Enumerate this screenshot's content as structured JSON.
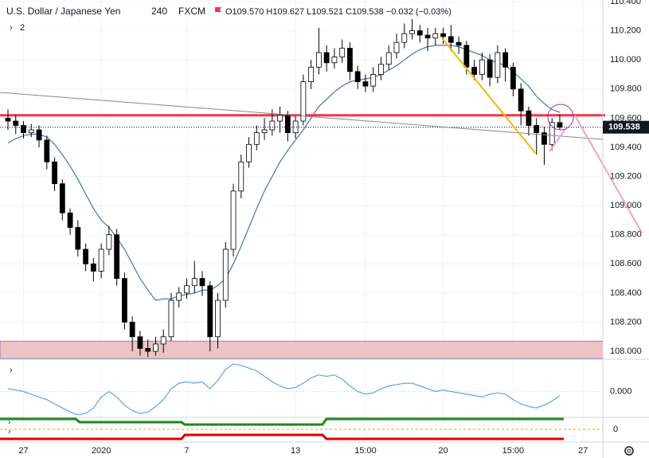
{
  "chart_data": {
    "type": "candlestick",
    "header": {
      "symbol": "U.S. Dollar / Japanese Yen",
      "interval": "240",
      "source": "FXCM",
      "ohlc": "O109.570 H109.627 L109.521 C109.538 −0.032 (−0.03%)",
      "indicators": "2"
    },
    "categories": [
      null,
      null,
      "27",
      null,
      null,
      null,
      null,
      null,
      null,
      null,
      null,
      null,
      "2020",
      null,
      null,
      null,
      null,
      null,
      null,
      null,
      null,
      null,
      null,
      "7",
      null,
      null,
      null,
      null,
      null,
      null,
      null,
      null,
      null,
      null,
      null,
      null,
      null,
      "13",
      null,
      null,
      null,
      null,
      null,
      null,
      null,
      null,
      "15:00",
      null,
      null,
      null,
      null,
      null,
      null,
      null,
      null,
      null,
      "20",
      null,
      null,
      null,
      null,
      null,
      null,
      null,
      null,
      "15:00",
      null,
      null,
      null,
      null,
      null,
      null,
      null,
      null,
      "27"
    ],
    "open": [
      109.6,
      109.58,
      109.55,
      109.5,
      109.52,
      109.45,
      109.3,
      109.15,
      108.95,
      108.85,
      108.7,
      108.6,
      108.55,
      108.7,
      108.8,
      108.5,
      108.2,
      108.1,
      108.02,
      108.0,
      108.05,
      108.1,
      108.35,
      108.4,
      108.45,
      108.5,
      108.45,
      108.1,
      108.35,
      108.7,
      109.1,
      109.3,
      109.42,
      109.5,
      109.52,
      109.58,
      109.62,
      109.5,
      109.58,
      109.85,
      109.95,
      110.05,
      109.98,
      110.02,
      110.08,
      109.92,
      109.85,
      109.82,
      109.9,
      109.97,
      110.05,
      110.12,
      110.18,
      110.2,
      110.17,
      110.15,
      110.18,
      110.16,
      110.12,
      110.1,
      109.95,
      109.9,
      110.0,
      109.88,
      110.05,
      109.95,
      109.8,
      109.65,
      109.55,
      109.5,
      109.42,
      109.57,
      null,
      null,
      null
    ],
    "high": [
      109.66,
      109.62,
      109.58,
      109.56,
      109.55,
      109.48,
      109.33,
      109.18,
      108.98,
      108.9,
      108.74,
      108.64,
      108.74,
      108.86,
      108.84,
      108.54,
      108.24,
      108.14,
      108.08,
      108.1,
      108.15,
      108.4,
      108.44,
      108.5,
      108.62,
      108.55,
      108.48,
      108.4,
      108.75,
      109.15,
      109.35,
      109.47,
      109.55,
      109.6,
      109.66,
      109.68,
      109.65,
      109.62,
      109.9,
      110.0,
      110.22,
      110.1,
      110.08,
      110.14,
      110.12,
      109.96,
      109.9,
      109.95,
      110.02,
      110.1,
      110.18,
      110.25,
      110.28,
      110.24,
      110.22,
      110.22,
      110.22,
      110.24,
      110.16,
      110.13,
      110.0,
      110.05,
      110.04,
      110.1,
      110.08,
      109.98,
      109.84,
      109.68,
      109.6,
      109.54,
      109.6,
      109.627,
      null,
      null,
      null
    ],
    "low": [
      109.52,
      109.49,
      109.46,
      109.47,
      109.4,
      109.25,
      109.1,
      108.9,
      108.8,
      108.65,
      108.55,
      108.48,
      108.5,
      108.66,
      108.45,
      108.15,
      108.0,
      107.97,
      107.96,
      107.97,
      107.99,
      108.07,
      108.3,
      108.36,
      108.4,
      108.38,
      108.0,
      108.02,
      108.3,
      108.65,
      109.05,
      109.26,
      109.38,
      109.45,
      109.48,
      109.5,
      109.44,
      109.46,
      109.55,
      109.8,
      109.9,
      109.92,
      109.94,
      109.98,
      109.86,
      109.8,
      109.78,
      109.78,
      109.86,
      109.93,
      110.01,
      110.08,
      110.14,
      110.12,
      110.06,
      110.1,
      110.11,
      110.06,
      110.04,
      109.9,
      109.86,
      109.86,
      109.82,
      109.84,
      109.85,
      109.75,
      109.55,
      109.48,
      109.35,
      109.28,
      109.38,
      109.521,
      null,
      null,
      null
    ],
    "close": [
      109.58,
      109.55,
      109.5,
      109.52,
      109.45,
      109.3,
      109.15,
      108.95,
      108.85,
      108.7,
      108.6,
      108.55,
      108.7,
      108.8,
      108.5,
      108.2,
      108.1,
      108.02,
      108.0,
      108.05,
      108.1,
      108.35,
      108.4,
      108.45,
      108.5,
      108.45,
      108.1,
      108.35,
      108.7,
      109.1,
      109.3,
      109.42,
      109.5,
      109.52,
      109.58,
      109.62,
      109.5,
      109.58,
      109.85,
      109.95,
      110.05,
      109.98,
      110.02,
      110.08,
      109.92,
      109.85,
      109.82,
      109.9,
      109.97,
      110.05,
      110.12,
      110.18,
      110.2,
      110.17,
      110.15,
      110.18,
      110.16,
      110.12,
      110.1,
      109.95,
      109.9,
      110.0,
      109.88,
      110.05,
      109.95,
      109.8,
      109.65,
      109.55,
      109.5,
      109.42,
      109.57,
      109.538,
      null,
      null,
      null
    ],
    "up_color": "#ffffff",
    "down_color": "#000000",
    "border_color": "#000000",
    "ma": {
      "color": "#4a6fb5",
      "values": [
        109.43,
        109.46,
        109.48,
        109.49,
        109.49,
        109.47,
        109.42,
        109.35,
        109.27,
        109.18,
        109.08,
        108.98,
        108.9,
        108.85,
        108.78,
        108.7,
        108.6,
        108.5,
        108.42,
        108.35,
        108.36,
        108.36,
        108.38,
        108.39,
        108.4,
        108.42,
        108.42,
        108.45,
        108.5,
        108.6,
        108.72,
        108.85,
        108.98,
        109.1,
        109.2,
        109.3,
        109.38,
        109.45,
        109.52,
        109.6,
        109.68,
        109.73,
        109.78,
        109.82,
        109.85,
        109.86,
        109.87,
        109.88,
        109.9,
        109.93,
        109.96,
        110.0,
        110.04,
        110.07,
        110.09,
        110.1,
        110.1,
        110.1,
        110.09,
        110.07,
        110.05,
        110.03,
        110.0,
        109.98,
        109.96,
        109.92,
        109.87,
        109.82,
        109.75,
        109.7,
        109.66,
        109.64,
        null,
        null,
        null
      ]
    },
    "hline": {
      "value": 109.62,
      "color": "#f23645"
    },
    "zone": {
      "from": 107.95,
      "to": 108.07,
      "color": "#e8b4b4"
    },
    "ylim": [
      107.951,
      110.411
    ],
    "yticks": [
      {
        "value": 110.4,
        "label": "110.400"
      },
      {
        "value": 110.2,
        "label": "110.200"
      },
      {
        "value": 110.0,
        "label": "110.000"
      },
      {
        "value": 109.8,
        "label": "109.800"
      },
      {
        "value": 109.6,
        "label": "109.600"
      },
      {
        "value": 109.4,
        "label": "109.400"
      },
      {
        "value": 109.2,
        "label": "109.200"
      },
      {
        "value": 109.0,
        "label": "109.000"
      },
      {
        "value": 108.8,
        "label": "108.800"
      },
      {
        "value": 108.6,
        "label": "108.600"
      },
      {
        "value": 108.4,
        "label": "108.400"
      },
      {
        "value": 108.2,
        "label": "108.200"
      },
      {
        "value": 108.0,
        "label": "108.000"
      }
    ],
    "grid": true,
    "oscillator": {
      "color": "#5aa7e6",
      "values": [
        0.1,
        0.05,
        0.0,
        -0.1,
        -0.2,
        -0.3,
        -0.45,
        -0.6,
        -0.75,
        -0.85,
        -0.8,
        -0.6,
        -0.2,
        0.0,
        -0.2,
        -0.5,
        -0.7,
        -0.8,
        -0.75,
        -0.55,
        -0.3,
        0.1,
        0.3,
        0.35,
        0.3,
        0.35,
        0.1,
        0.4,
        0.8,
        1.0,
        0.95,
        0.85,
        0.75,
        0.55,
        0.35,
        0.2,
        0.1,
        0.15,
        0.3,
        0.5,
        0.6,
        0.55,
        0.6,
        0.45,
        0.2,
        0.0,
        -0.1,
        -0.05,
        0.1,
        0.2,
        0.25,
        0.3,
        0.3,
        0.2,
        0.1,
        0.0,
        0.05,
        0.0,
        -0.05,
        -0.1,
        -0.15,
        -0.2,
        -0.1,
        -0.05,
        -0.1,
        -0.3,
        -0.45,
        -0.55,
        -0.6,
        -0.5,
        -0.35,
        -0.15,
        null,
        null,
        null
      ],
      "ylim": [
        -0.943,
        1.143
      ],
      "yticks": [
        {
          "value": 0,
          "label": "0.000"
        }
      ]
    },
    "pane3": {
      "yticks": [
        0
      ]
    }
  }
}
